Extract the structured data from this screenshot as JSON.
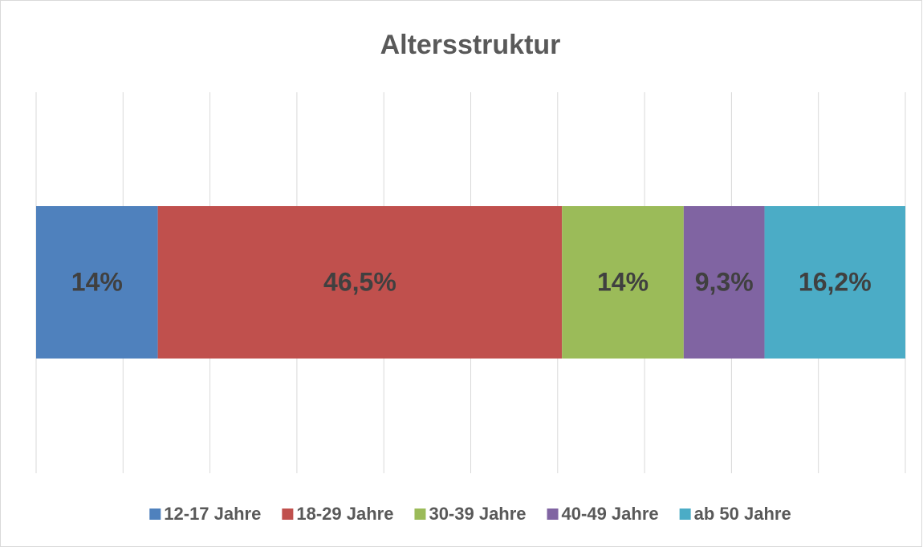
{
  "chart_data": {
    "type": "stacked-bar",
    "orientation": "horizontal",
    "title": "Altersstruktur",
    "series": [
      {
        "name": "12-17 Jahre",
        "color": "#4f81bd",
        "values": [
          14
        ],
        "value_labels": [
          "14%"
        ]
      },
      {
        "name": "18-29 Jahre",
        "color": "#c0504d",
        "values": [
          46.5
        ],
        "value_labels": [
          "46,5%"
        ]
      },
      {
        "name": "30-39 Jahre",
        "color": "#9bbb59",
        "values": [
          14
        ],
        "value_labels": [
          "14%"
        ]
      },
      {
        "name": "40-49 Jahre",
        "color": "#8064a2",
        "values": [
          9.3
        ],
        "value_labels": [
          "9,3%"
        ]
      },
      {
        "name": "ab 50 Jahre",
        "color": "#4bacc6",
        "values": [
          16.2
        ],
        "value_labels": [
          "16,2%"
        ]
      }
    ],
    "xlim": [
      0,
      100
    ],
    "xticks": [
      0,
      10,
      20,
      30,
      40,
      50,
      60,
      70,
      80,
      90,
      100
    ],
    "grid": true,
    "legend": "bottom"
  }
}
